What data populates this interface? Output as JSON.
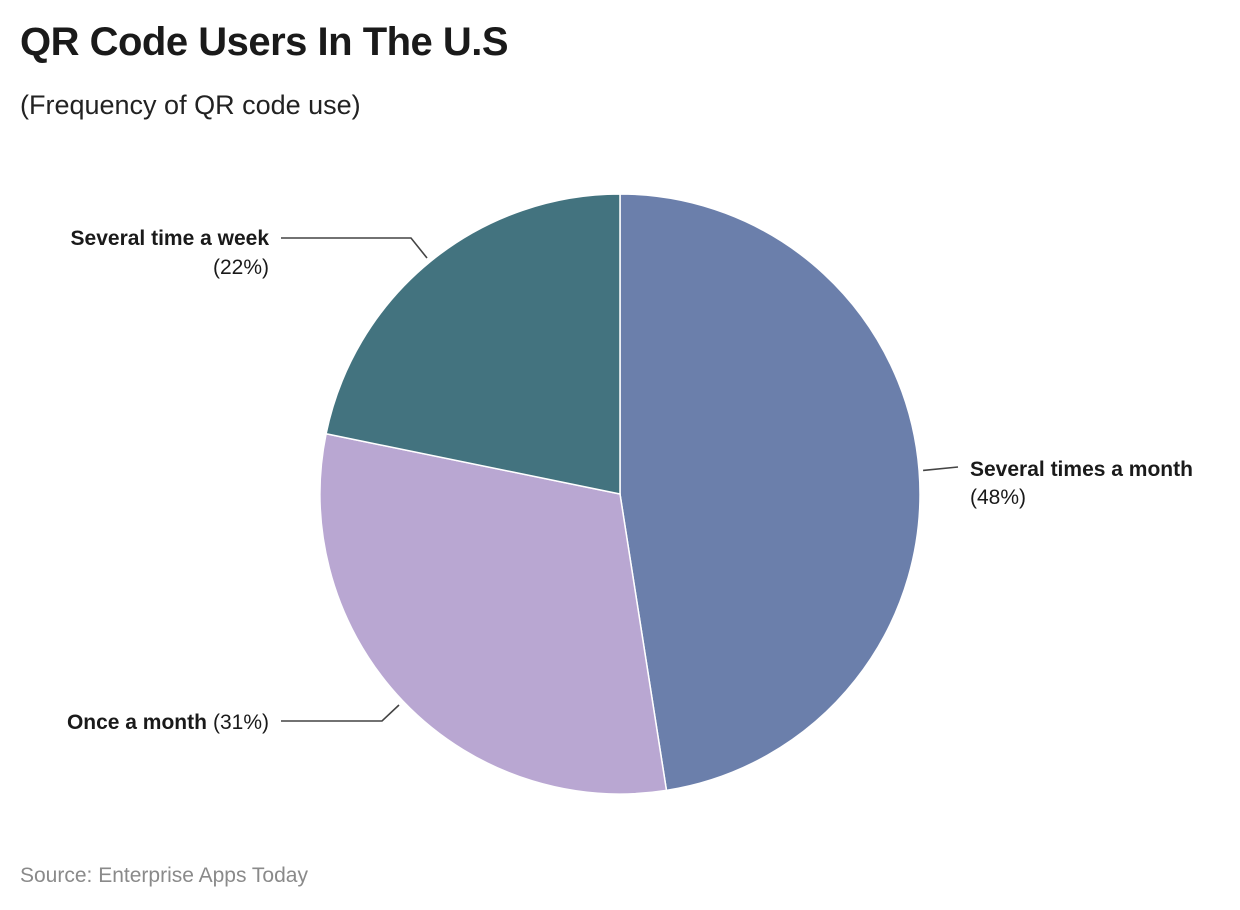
{
  "header": {
    "title": "QR Code Users In The U.S",
    "subtitle": "(Frequency of QR code use)"
  },
  "footer": {
    "source": "Source: Enterprise Apps Today"
  },
  "chart_data": {
    "type": "pie",
    "title": "QR Code Users In The U.S",
    "subtitle": "(Frequency of QR code use)",
    "slices": [
      {
        "label": "Several times a month",
        "value": 48,
        "value_label": "(48%)",
        "color": "#6b7fab"
      },
      {
        "label": "Once a month",
        "value": 31,
        "value_label": "(31%)",
        "color": "#b9a7d2"
      },
      {
        "label": "Several time a week",
        "value": 22,
        "value_label": "(22%)",
        "color": "#43737f"
      }
    ],
    "start": "12 o'clock",
    "direction": "clockwise",
    "legend": "none (direct labels)"
  }
}
